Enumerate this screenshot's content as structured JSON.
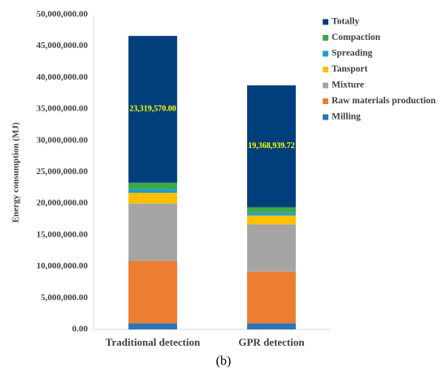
{
  "chart_data": {
    "type": "stacked_bar",
    "y_label": "Energy consumption (MJ)",
    "caption": "(b)",
    "categories": [
      "Traditional detection",
      "GPR detection"
    ],
    "series": [
      {
        "name": "Milling",
        "color": "#2e75b6",
        "values": [
          1000000,
          1000000
        ]
      },
      {
        "name": "Raw materials production",
        "color": "#ed7d31",
        "values": [
          9900000,
          8200000
        ]
      },
      {
        "name": "Mixture",
        "color": "#a5a5a5",
        "values": [
          9100000,
          7500000
        ]
      },
      {
        "name": "Tansport",
        "color": "#ffc000",
        "values": [
          1700000,
          1400000
        ]
      },
      {
        "name": "Spreading",
        "color": "#1f9fd0",
        "values": [
          600000,
          400000
        ]
      },
      {
        "name": "Compaction",
        "color": "#3ea84a",
        "values": [
          1000000,
          900000
        ]
      },
      {
        "name": "Totally",
        "color": "#003f7c",
        "values": [
          23319570,
          19368939.72
        ],
        "value_labels": [
          "23,319,570.00",
          "19,368,939.72"
        ]
      }
    ],
    "ylim": [
      0,
      50000000
    ],
    "yticks": [
      {
        "value": 0,
        "label": "0.00"
      },
      {
        "value": 5000000,
        "label": "5,000,000.00"
      },
      {
        "value": 10000000,
        "label": "10,000,000.00"
      },
      {
        "value": 15000000,
        "label": "15,000,000.00"
      },
      {
        "value": 20000000,
        "label": "20,000,000.00"
      },
      {
        "value": 25000000,
        "label": "25,000,000.00"
      },
      {
        "value": 30000000,
        "label": "30,000,000.00"
      },
      {
        "value": 35000000,
        "label": "35,000,000.00"
      },
      {
        "value": 40000000,
        "label": "40,000,000.00"
      },
      {
        "value": 45000000,
        "label": "45,000,000.00"
      },
      {
        "value": 50000000,
        "label": "50,000,000.00"
      }
    ],
    "legend": "right"
  }
}
